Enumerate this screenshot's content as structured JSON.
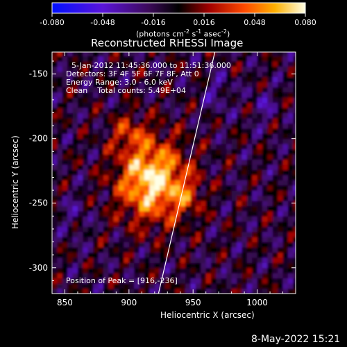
{
  "chart_data": {
    "type": "heatmap",
    "title": "Reconstructed RHESSI Image",
    "xlabel": "Heliocentric X (arcsec)",
    "ylabel": "Heliocentric Y (arcsec)",
    "xlim": [
      840,
      1030
    ],
    "ylim": [
      -320,
      -133
    ],
    "x_ticks": [
      "850",
      "900",
      "950",
      "1000"
    ],
    "x_tick_values": [
      850,
      900,
      950,
      1000
    ],
    "y_ticks": [
      "-150",
      "-200",
      "-250",
      "-300"
    ],
    "y_tick_values": [
      -150,
      -200,
      -250,
      -300
    ],
    "colorbar": {
      "min": -0.08,
      "max": 0.08,
      "ticks": [
        "-0.080",
        "-0.048",
        "-0.016",
        "0.016",
        "0.048",
        "0.080"
      ],
      "tick_values": [
        -0.08,
        -0.048,
        -0.016,
        0.016,
        0.048,
        0.08
      ],
      "unit_line1": "(photons cm",
      "unit_sup1": "-2",
      "unit_mid": " s",
      "unit_sup2": "-1",
      "unit_mid2": " asec",
      "unit_sup3": "-2",
      "unit_end": ")"
    },
    "annotations": {
      "time_range": "5-Jan-2012 11:45:36.000 to 11:51:36.000",
      "detectors": "Detectors: 3F 4F 5F 6F 7F 8F, Att 0",
      "energy": "Energy Range: 3.0 - 6.0 keV",
      "method": "Clean",
      "counts": "Total counts: 5.49E+04",
      "peak": "Position of Peak = [916,-236]"
    },
    "peak": {
      "x": 916,
      "y": -236
    },
    "limb_line": {
      "x_top": 967,
      "y_top": -133,
      "x_bottom": 923,
      "y_bottom": -320
    },
    "colors": {
      "low": "#0000ff",
      "mid": "#000000",
      "high": "#ffffff"
    }
  },
  "footer": {
    "timestamp": "8-May-2022 15:21"
  }
}
